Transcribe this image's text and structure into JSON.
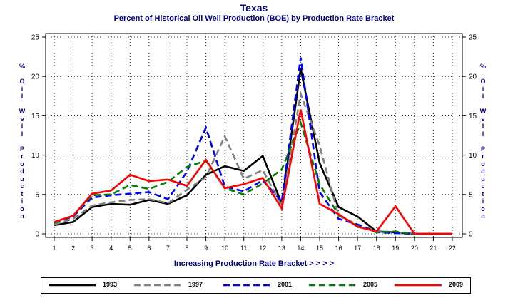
{
  "chart_data": {
    "type": "line",
    "title": "Texas",
    "subtitle": "Percent of Historical Oil Well Production (BOE) by Production Rate Bracket",
    "xlabel": "Increasing Production Rate Bracket > > > >",
    "ylabel": "% Oil Well Production",
    "categories": [
      "1",
      "2",
      "3",
      "4",
      "5",
      "6",
      "7",
      "8",
      "9",
      "10",
      "11",
      "12",
      "13",
      "14",
      "15",
      "16",
      "17",
      "18",
      "19",
      "20",
      "21",
      "22"
    ],
    "ylim": [
      0,
      25
    ],
    "yticks": [
      "0",
      "5",
      "10",
      "15",
      "20",
      "25"
    ],
    "grid": true,
    "legend_position": "bottom",
    "series": [
      {
        "name": "1993",
        "color": "#000000",
        "dash": "solid",
        "values": [
          1.1,
          1.5,
          3.4,
          3.8,
          3.7,
          4.3,
          3.8,
          4.9,
          7.5,
          8.6,
          8.0,
          9.9,
          3.8,
          21.0,
          9.0,
          3.4,
          2.2,
          0.3,
          0.2,
          0.0,
          0.0,
          0.0
        ]
      },
      {
        "name": "1997",
        "color": "#808080",
        "dash": "dashed",
        "values": [
          1.2,
          1.9,
          3.6,
          4.0,
          4.3,
          4.4,
          3.9,
          5.6,
          7.2,
          12.4,
          7.0,
          8.1,
          3.6,
          17.8,
          11.2,
          2.3,
          1.2,
          0.4,
          0.1,
          0.0,
          0.0,
          0.0
        ]
      },
      {
        "name": "2001",
        "color": "#0000ff",
        "dash": "dashed",
        "values": [
          1.4,
          2.2,
          4.6,
          4.9,
          5.1,
          5.3,
          4.4,
          7.9,
          13.5,
          6.0,
          5.4,
          6.8,
          4.1,
          22.4,
          5.3,
          1.9,
          1.2,
          0.2,
          0.1,
          0.0,
          0.0,
          0.0
        ]
      },
      {
        "name": "2005",
        "color": "#008000",
        "dash": "dashed",
        "values": [
          1.4,
          2.3,
          4.9,
          5.0,
          6.2,
          5.7,
          6.6,
          8.5,
          9.3,
          5.8,
          5.0,
          6.4,
          8.2,
          14.1,
          6.3,
          2.4,
          1.0,
          0.2,
          0.3,
          0.0,
          0.0,
          0.0
        ]
      },
      {
        "name": "2009",
        "color": "#ff0000",
        "dash": "solid",
        "values": [
          1.5,
          2.3,
          5.1,
          5.5,
          7.5,
          6.7,
          6.9,
          6.1,
          9.4,
          5.8,
          6.3,
          7.1,
          3.2,
          15.8,
          3.8,
          2.5,
          0.9,
          0.3,
          3.5,
          0.0,
          0.0,
          0.0
        ]
      }
    ]
  }
}
